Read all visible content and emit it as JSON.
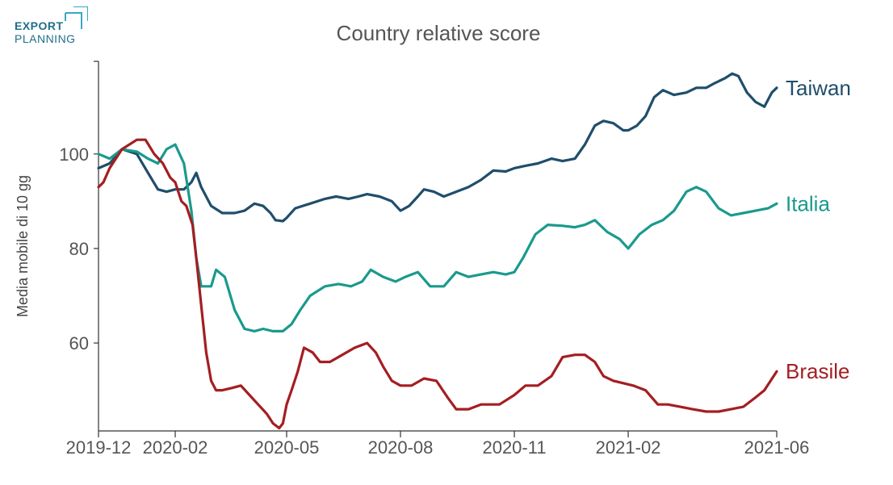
{
  "logo": {
    "line1": "EXPORT",
    "line2": "PLANNING"
  },
  "chart_data": {
    "type": "line",
    "title": "Country relative score",
    "xlabel": "",
    "ylabel": "Media mobile di 10 gg",
    "x_ticks": [
      "2019-12",
      "2020-02",
      "2020-05",
      "2020-08",
      "2020-11",
      "2021-02",
      "2021-06"
    ],
    "xlim": [
      "2019-12-01",
      "2021-06-01"
    ],
    "y_ticks": [
      60,
      80,
      100
    ],
    "ylim": [
      41.4,
      119.6
    ],
    "grid": false,
    "legend": "inline labels at line ends",
    "series": [
      {
        "name": "Taiwan",
        "color": "#1f4e6b",
        "x": [
          "2019-12-01",
          "2019-12-10",
          "2019-12-20",
          "2020-01-01",
          "2020-01-10",
          "2020-01-18",
          "2020-01-25",
          "2020-02-01",
          "2020-02-08",
          "2020-02-14",
          "2020-02-18",
          "2020-02-22",
          "2020-03-01",
          "2020-03-10",
          "2020-03-20",
          "2020-03-28",
          "2020-04-05",
          "2020-04-12",
          "2020-04-18",
          "2020-04-22",
          "2020-04-28",
          "2020-05-01",
          "2020-05-08",
          "2020-05-20",
          "2020-06-01",
          "2020-06-10",
          "2020-06-20",
          "2020-06-28",
          "2020-07-05",
          "2020-07-15",
          "2020-07-25",
          "2020-08-01",
          "2020-08-08",
          "2020-08-15",
          "2020-08-20",
          "2020-08-28",
          "2020-09-05",
          "2020-09-15",
          "2020-09-25",
          "2020-10-05",
          "2020-10-15",
          "2020-10-25",
          "2020-11-01",
          "2020-11-10",
          "2020-11-20",
          "2020-12-01",
          "2020-12-10",
          "2020-12-20",
          "2020-12-28",
          "2021-01-05",
          "2021-01-12",
          "2021-01-20",
          "2021-01-28",
          "2021-02-01",
          "2021-02-08",
          "2021-02-15",
          "2021-02-22",
          "2021-03-01",
          "2021-03-10",
          "2021-03-20",
          "2021-03-28",
          "2021-04-05",
          "2021-04-12",
          "2021-04-20",
          "2021-04-26",
          "2021-05-01",
          "2021-05-08",
          "2021-05-15",
          "2021-05-22",
          "2021-05-28",
          "2021-06-01"
        ],
        "values": [
          97,
          98,
          101,
          100,
          96,
          92.5,
          92,
          92.5,
          92.5,
          94,
          96,
          93,
          89,
          87.5,
          87.5,
          88,
          89.5,
          89,
          87.5,
          86,
          85.8,
          86.5,
          88.5,
          89.5,
          90.5,
          91,
          90.5,
          91,
          91.5,
          91,
          90,
          88,
          89,
          91,
          92.5,
          92,
          91,
          92,
          93,
          94.5,
          96.5,
          96.3,
          97,
          97.5,
          98,
          99,
          98.5,
          99,
          102,
          106,
          107,
          106.5,
          105,
          105,
          106,
          108,
          112,
          113.5,
          112.5,
          113,
          114,
          114,
          115,
          116,
          117,
          116.5,
          113,
          111,
          110,
          113,
          114
        ]
      },
      {
        "name": "Italia",
        "color": "#1a9a8d",
        "x": [
          "2019-12-01",
          "2019-12-10",
          "2019-12-20",
          "2020-01-01",
          "2020-01-10",
          "2020-01-18",
          "2020-01-25",
          "2020-02-01",
          "2020-02-08",
          "2020-02-14",
          "2020-02-18",
          "2020-02-22",
          "2020-03-01",
          "2020-03-05",
          "2020-03-12",
          "2020-03-20",
          "2020-03-28",
          "2020-04-05",
          "2020-04-12",
          "2020-04-20",
          "2020-04-28",
          "2020-05-05",
          "2020-05-12",
          "2020-05-20",
          "2020-06-01",
          "2020-06-12",
          "2020-06-22",
          "2020-07-01",
          "2020-07-08",
          "2020-07-18",
          "2020-07-28",
          "2020-08-05",
          "2020-08-15",
          "2020-08-25",
          "2020-09-05",
          "2020-09-15",
          "2020-09-25",
          "2020-10-05",
          "2020-10-15",
          "2020-10-25",
          "2020-11-01",
          "2020-11-08",
          "2020-11-18",
          "2020-11-28",
          "2020-12-10",
          "2020-12-20",
          "2020-12-28",
          "2021-01-05",
          "2021-01-15",
          "2021-01-25",
          "2021-02-01",
          "2021-02-10",
          "2021-02-20",
          "2021-03-01",
          "2021-03-10",
          "2021-03-20",
          "2021-03-28",
          "2021-04-05",
          "2021-04-15",
          "2021-04-25",
          "2021-05-05",
          "2021-05-15",
          "2021-05-25",
          "2021-06-01"
        ],
        "values": [
          100,
          99,
          101,
          100.5,
          99,
          98,
          101,
          102,
          98,
          88,
          78,
          72,
          72,
          75.5,
          74,
          67,
          63,
          62.5,
          63,
          62.5,
          62.5,
          64,
          67,
          70,
          72,
          72.5,
          72,
          73,
          75.5,
          74,
          73,
          74,
          75,
          72,
          72,
          75,
          74,
          74.5,
          75,
          74.5,
          75,
          78,
          83,
          85,
          84.8,
          84.5,
          85,
          86,
          83.5,
          82,
          80,
          83,
          85,
          86,
          88,
          92,
          93,
          92,
          88.5,
          87,
          87.5,
          88,
          88.5,
          89.5
        ]
      },
      {
        "name": "Brasile",
        "color": "#a41e22",
        "x": [
          "2019-12-01",
          "2019-12-05",
          "2019-12-10",
          "2019-12-20",
          "2020-01-01",
          "2020-01-08",
          "2020-01-15",
          "2020-01-22",
          "2020-01-28",
          "2020-02-01",
          "2020-02-06",
          "2020-02-10",
          "2020-02-15",
          "2020-02-18",
          "2020-02-22",
          "2020-02-26",
          "2020-03-01",
          "2020-03-05",
          "2020-03-10",
          "2020-03-18",
          "2020-03-25",
          "2020-04-01",
          "2020-04-08",
          "2020-04-15",
          "2020-04-20",
          "2020-04-25",
          "2020-04-28",
          "2020-05-01",
          "2020-05-05",
          "2020-05-10",
          "2020-05-15",
          "2020-05-22",
          "2020-05-28",
          "2020-06-05",
          "2020-06-15",
          "2020-06-25",
          "2020-07-05",
          "2020-07-12",
          "2020-07-18",
          "2020-07-25",
          "2020-08-01",
          "2020-08-10",
          "2020-08-20",
          "2020-08-30",
          "2020-09-08",
          "2020-09-15",
          "2020-09-25",
          "2020-10-05",
          "2020-10-12",
          "2020-10-20",
          "2020-11-01",
          "2020-11-10",
          "2020-11-20",
          "2020-12-01",
          "2020-12-10",
          "2020-12-20",
          "2020-12-28",
          "2021-01-05",
          "2021-01-12",
          "2021-01-20",
          "2021-01-28",
          "2021-02-05",
          "2021-02-15",
          "2021-02-25",
          "2021-03-05",
          "2021-03-15",
          "2021-03-25",
          "2021-04-05",
          "2021-04-15",
          "2021-04-25",
          "2021-05-05",
          "2021-05-15",
          "2021-05-22",
          "2021-06-01"
        ],
        "values": [
          93,
          94,
          97,
          101,
          103,
          103,
          100,
          98,
          95,
          94,
          90,
          89,
          85,
          78,
          68,
          58,
          52,
          50,
          50,
          50.5,
          51,
          49,
          47,
          45,
          43,
          42,
          43,
          47,
          50,
          54,
          59,
          58,
          56,
          56,
          57.5,
          59,
          60,
          58,
          55,
          52,
          51,
          51,
          52.5,
          52,
          48.5,
          46,
          46,
          47,
          47,
          47,
          49,
          51,
          51,
          53,
          57,
          57.5,
          57.5,
          56,
          53,
          52,
          51.5,
          51,
          50,
          47,
          47,
          46.5,
          46,
          45.5,
          45.5,
          46,
          46.5,
          48.5,
          50,
          54
        ]
      }
    ]
  }
}
